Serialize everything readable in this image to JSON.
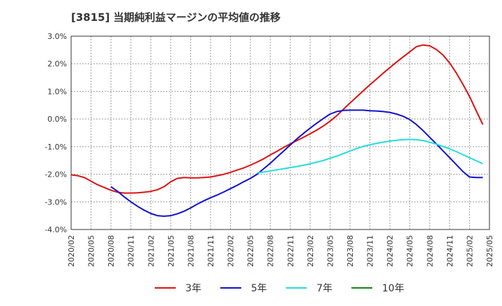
{
  "chart_data": {
    "type": "line",
    "title": "[3815]  当期純利益マージンの平均値の推移",
    "xlabel": "",
    "ylabel": "",
    "ylim": [
      -4,
      3
    ],
    "grid": true,
    "legend_position": "bottom",
    "y_ticks": [
      "3.0%",
      "2.0%",
      "1.0%",
      "0.0%",
      "-1.0%",
      "-2.0%",
      "-3.0%",
      "-4.0%"
    ],
    "x_ticks": [
      "2020/02",
      "2020/05",
      "2020/08",
      "2020/11",
      "2021/02",
      "2021/05",
      "2021/08",
      "2021/11",
      "2022/02",
      "2022/05",
      "2022/08",
      "2022/11",
      "2023/02",
      "2023/05",
      "2023/08",
      "2023/11",
      "2024/02",
      "2024/05",
      "2024/08",
      "2024/11",
      "2025/02",
      "2025/05"
    ],
    "series": [
      {
        "name": "3年",
        "color": "#dd1111",
        "x": [
          0,
          1,
          2,
          3,
          4,
          5,
          6,
          7,
          8,
          9,
          10,
          11,
          12,
          13,
          14,
          15,
          16,
          17,
          18,
          19,
          20,
          21,
          22,
          23,
          24,
          25,
          26,
          27,
          28,
          29,
          30,
          31,
          32,
          33,
          34,
          35,
          36,
          37,
          38,
          39,
          40,
          41,
          42,
          43,
          44,
          45,
          46,
          47,
          48,
          49,
          50,
          51,
          52,
          53,
          54,
          55,
          56,
          57,
          58,
          59,
          60
        ],
        "values": [
          -2.02,
          -2.05,
          -2.12,
          -2.25,
          -2.38,
          -2.48,
          -2.58,
          -2.65,
          -2.68,
          -2.68,
          -2.67,
          -2.65,
          -2.62,
          -2.56,
          -2.45,
          -2.27,
          -2.15,
          -2.12,
          -2.13,
          -2.13,
          -2.12,
          -2.1,
          -2.05,
          -2.0,
          -1.93,
          -1.85,
          -1.77,
          -1.67,
          -1.56,
          -1.44,
          -1.3,
          -1.17,
          -1.03,
          -0.9,
          -0.78,
          -0.66,
          -0.53,
          -0.4,
          -0.25,
          -0.08,
          0.12,
          0.35,
          0.58,
          0.8,
          1.02,
          1.24,
          1.45,
          1.66,
          1.86,
          2.06,
          2.25,
          2.43,
          2.62,
          2.68,
          2.65,
          2.52,
          2.32,
          2.03,
          1.67,
          1.26,
          0.82
        ]
      },
      {
        "name": "3年_tail",
        "color": "#dd1111",
        "x": [
          60,
          61,
          62
        ],
        "values": [
          0.82,
          0.3,
          -0.2
        ]
      },
      {
        "name": "5年",
        "color": "#1111cc",
        "x": [
          6,
          7,
          8,
          9,
          10,
          11,
          12,
          13,
          14,
          15,
          16,
          17,
          18,
          19,
          20,
          21,
          22,
          23,
          24,
          25,
          26,
          27,
          28,
          29,
          30,
          31,
          32,
          33,
          34,
          35,
          36,
          37,
          38,
          39,
          40,
          41,
          42,
          43,
          44,
          45,
          46,
          47,
          48,
          49,
          50,
          51,
          52,
          53,
          54,
          55,
          56,
          57,
          58,
          59,
          60,
          61,
          62
        ],
        "values": [
          -2.45,
          -2.62,
          -2.82,
          -3.0,
          -3.16,
          -3.3,
          -3.42,
          -3.5,
          -3.52,
          -3.5,
          -3.43,
          -3.34,
          -3.22,
          -3.08,
          -2.96,
          -2.85,
          -2.75,
          -2.64,
          -2.52,
          -2.4,
          -2.27,
          -2.15,
          -2.0,
          -1.8,
          -1.6,
          -1.38,
          -1.16,
          -0.94,
          -0.72,
          -0.52,
          -0.33,
          -0.15,
          0.02,
          0.18,
          0.27,
          0.31,
          0.32,
          0.32,
          0.32,
          0.3,
          0.29,
          0.27,
          0.24,
          0.18,
          0.1,
          -0.02,
          -0.2,
          -0.42,
          -0.66,
          -0.9,
          -1.15,
          -1.4,
          -1.65,
          -1.9,
          -2.1,
          -2.12,
          -2.12
        ]
      },
      {
        "name": "7年",
        "color": "#22dddd",
        "x": [
          28,
          29,
          30,
          31,
          32,
          33,
          34,
          35,
          36,
          37,
          38,
          39,
          40,
          41,
          42,
          43,
          44,
          45,
          46,
          47,
          48,
          49,
          50,
          51,
          52,
          53,
          54,
          55,
          56,
          57,
          58,
          59,
          60,
          61,
          62
        ],
        "values": [
          -1.95,
          -1.92,
          -1.88,
          -1.84,
          -1.8,
          -1.76,
          -1.72,
          -1.67,
          -1.62,
          -1.56,
          -1.5,
          -1.42,
          -1.34,
          -1.25,
          -1.16,
          -1.07,
          -0.99,
          -0.93,
          -0.88,
          -0.84,
          -0.8,
          -0.77,
          -0.75,
          -0.74,
          -0.75,
          -0.78,
          -0.84,
          -0.91,
          -0.99,
          -1.08,
          -1.18,
          -1.29,
          -1.4,
          -1.51,
          -1.62
        ]
      },
      {
        "name": "10年",
        "color": "#118811",
        "x": [],
        "values": []
      }
    ]
  },
  "legend": [
    {
      "name": "3年",
      "color": "#dd1111"
    },
    {
      "name": "5年",
      "color": "#1111cc"
    },
    {
      "name": "7年",
      "color": "#22dddd"
    },
    {
      "name": "10年",
      "color": "#118811"
    }
  ]
}
